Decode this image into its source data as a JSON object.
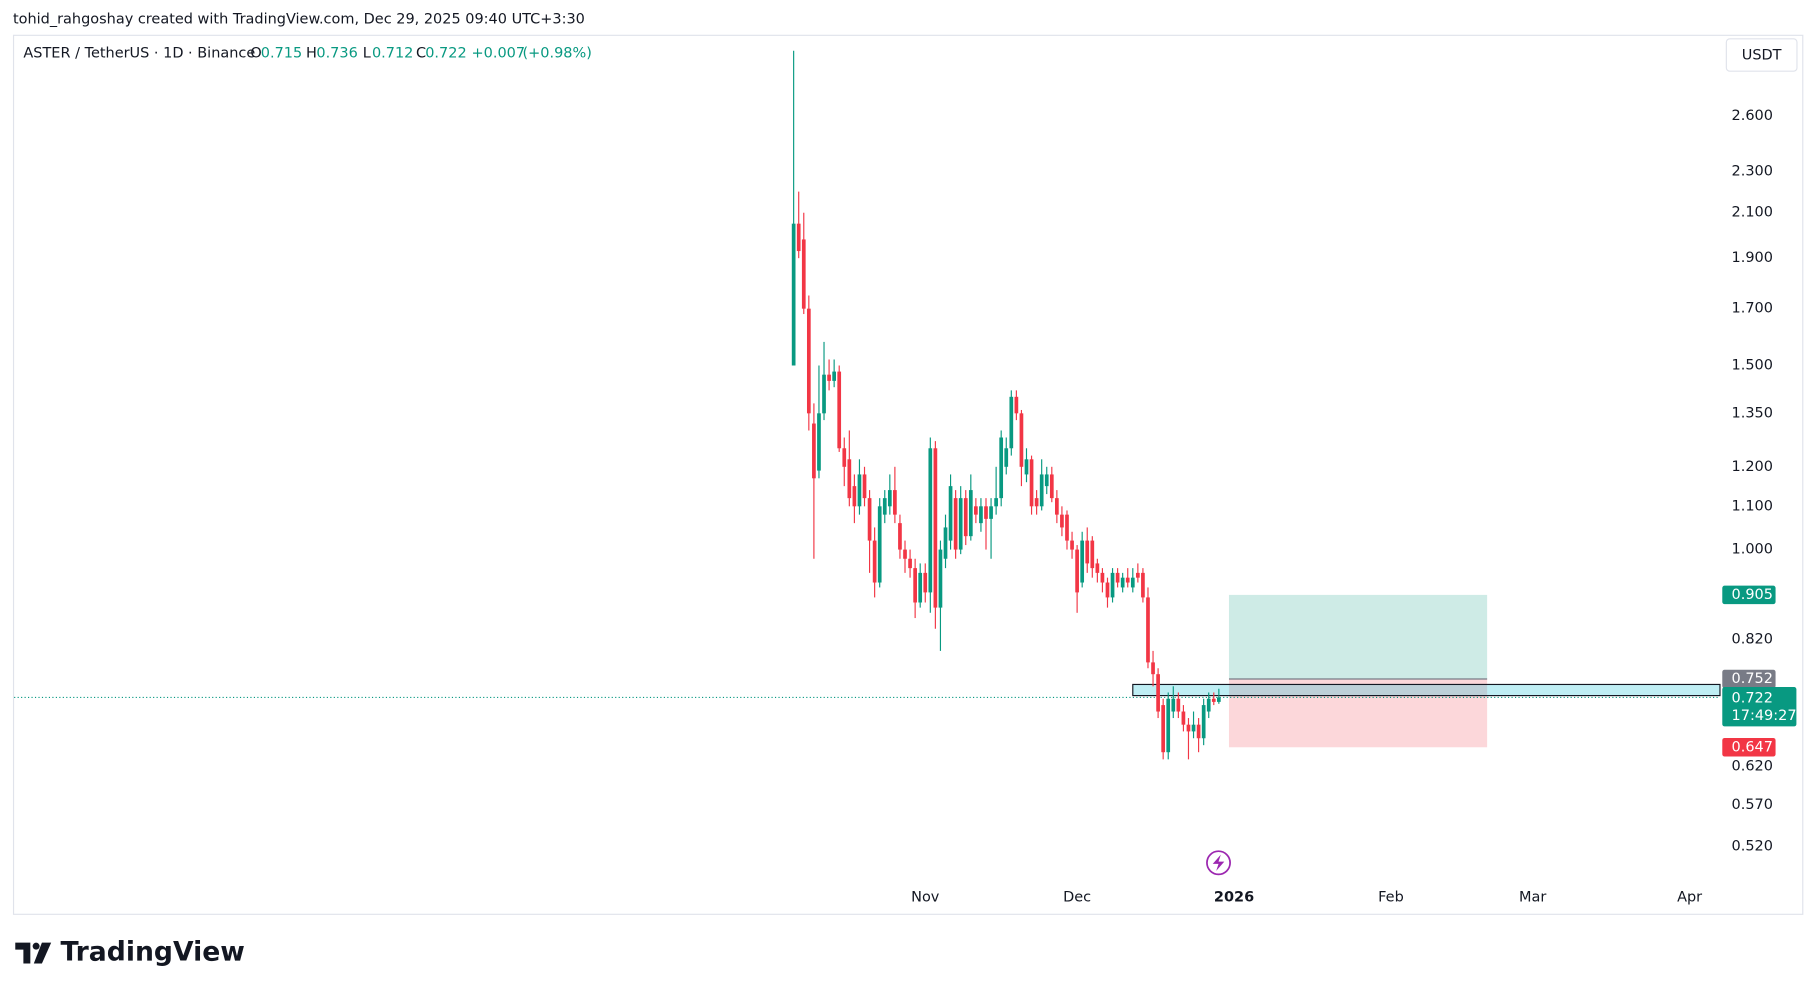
{
  "chart_data": {
    "type": "candlestick",
    "attribution": "tohid_rahgoshay created with TradingView.com, Dec 29, 2025 09:40 UTC+3:30",
    "title": "ASTER / TetherUS · 1D · Binance",
    "ohlc_labels": [
      "O",
      "H",
      "L",
      "C"
    ],
    "change": "+0.007",
    "change_pct": "(+0.98%)",
    "currency": "USDT",
    "countdown": "17:49:27",
    "watermark": "TradingView",
    "log_scale": true,
    "up_color": "#089981",
    "down_color": "#f23645",
    "x": [
      0,
      1,
      2,
      3,
      4,
      5,
      6,
      7,
      8,
      9,
      10,
      11,
      12,
      13,
      14,
      15,
      16,
      17,
      18,
      19,
      20,
      21,
      22,
      23,
      24,
      25,
      26,
      27,
      28,
      29,
      30,
      31,
      32,
      33,
      34,
      35,
      36,
      37,
      38,
      39,
      40,
      41,
      42,
      43,
      44,
      45,
      46,
      47,
      48,
      49,
      50,
      51,
      52,
      53,
      54,
      55,
      56,
      57,
      58,
      59,
      60,
      61,
      62,
      63,
      64,
      65,
      66,
      67,
      68,
      69,
      70,
      71,
      72,
      73,
      74,
      75,
      76,
      77,
      78,
      79,
      80,
      81,
      82,
      83,
      84
    ],
    "open": [
      1.5,
      2.05,
      1.98,
      1.7,
      1.32,
      1.19,
      1.35,
      1.47,
      1.45,
      1.48,
      1.25,
      1.22,
      1.15,
      1.1,
      1.18,
      1.12,
      1.02,
      0.93,
      1.08,
      1.1,
      1.14,
      1.06,
      1.0,
      0.98,
      0.96,
      0.89,
      0.95,
      0.91,
      1.25,
      0.88,
      0.98,
      1.02,
      1.12,
      1.0,
      1.12,
      1.03,
      1.1,
      1.06,
      1.1,
      1.07,
      1.1,
      1.12,
      1.2,
      1.25,
      1.4,
      1.35,
      1.18,
      1.22,
      1.12,
      1.1,
      1.15,
      1.18,
      1.12,
      1.08,
      1.08,
      1.02,
      1.0,
      0.93,
      1.02,
      1.02,
      0.97,
      0.95,
      0.93,
      0.9,
      0.95,
      0.92,
      0.94,
      0.92,
      0.95,
      0.95,
      0.9,
      0.78,
      0.76,
      0.71,
      0.64,
      0.7,
      0.72,
      0.7,
      0.68,
      0.67,
      0.68,
      0.66,
      0.7,
      0.72,
      0.715
    ],
    "high": [
      3.0,
      2.2,
      2.1,
      1.75,
      1.38,
      1.5,
      1.58,
      1.52,
      1.52,
      1.5,
      1.28,
      1.3,
      1.18,
      1.22,
      1.2,
      1.14,
      1.05,
      1.12,
      1.14,
      1.18,
      1.2,
      1.08,
      1.02,
      1.0,
      0.98,
      0.97,
      0.97,
      1.28,
      1.27,
      1.02,
      1.08,
      1.18,
      1.14,
      1.15,
      1.14,
      1.18,
      1.12,
      1.12,
      1.12,
      1.12,
      1.2,
      1.3,
      1.28,
      1.42,
      1.42,
      1.36,
      1.25,
      1.23,
      1.14,
      1.22,
      1.2,
      1.2,
      1.14,
      1.1,
      1.09,
      1.04,
      1.01,
      1.04,
      1.05,
      1.03,
      0.98,
      0.96,
      0.94,
      0.96,
      0.96,
      0.95,
      0.96,
      0.96,
      0.97,
      0.96,
      0.92,
      0.8,
      0.77,
      0.72,
      0.73,
      0.74,
      0.73,
      0.71,
      0.69,
      0.7,
      0.69,
      0.72,
      0.73,
      0.73,
      0.736
    ],
    "low": [
      1.5,
      1.9,
      1.68,
      1.3,
      0.98,
      1.17,
      1.33,
      1.42,
      1.43,
      1.24,
      1.15,
      1.1,
      1.06,
      1.08,
      1.1,
      0.95,
      0.9,
      0.92,
      1.06,
      1.08,
      1.06,
      0.98,
      0.95,
      0.94,
      0.86,
      0.88,
      0.89,
      0.87,
      0.84,
      0.8,
      0.96,
      1.0,
      0.98,
      0.99,
      1.01,
      1.02,
      1.06,
      1.04,
      1.0,
      0.98,
      1.08,
      1.1,
      1.18,
      1.23,
      1.33,
      1.15,
      1.16,
      1.08,
      1.08,
      1.09,
      1.13,
      1.11,
      1.06,
      1.03,
      1.0,
      0.98,
      0.87,
      0.92,
      0.95,
      0.94,
      0.93,
      0.91,
      0.88,
      0.89,
      0.92,
      0.91,
      0.92,
      0.91,
      0.93,
      0.89,
      0.77,
      0.74,
      0.69,
      0.63,
      0.63,
      0.69,
      0.69,
      0.67,
      0.63,
      0.66,
      0.64,
      0.65,
      0.69,
      0.71,
      0.712
    ],
    "close": [
      2.05,
      1.93,
      1.7,
      1.35,
      1.17,
      1.35,
      1.47,
      1.45,
      1.48,
      1.25,
      1.2,
      1.12,
      1.1,
      1.18,
      1.12,
      1.02,
      0.93,
      1.1,
      1.12,
      1.14,
      1.08,
      1.0,
      0.98,
      0.96,
      0.89,
      0.95,
      0.91,
      1.25,
      0.88,
      1.0,
      1.05,
      1.15,
      1.0,
      1.12,
      1.03,
      1.14,
      1.08,
      1.1,
      1.07,
      1.1,
      1.12,
      1.28,
      1.25,
      1.4,
      1.35,
      1.2,
      1.22,
      1.1,
      1.1,
      1.18,
      1.18,
      1.12,
      1.08,
      1.05,
      1.02,
      1.0,
      0.91,
      1.02,
      0.97,
      0.96,
      0.95,
      0.93,
      0.9,
      0.95,
      0.93,
      0.94,
      0.93,
      0.94,
      0.94,
      0.9,
      0.78,
      0.76,
      0.7,
      0.64,
      0.72,
      0.72,
      0.7,
      0.68,
      0.67,
      0.68,
      0.66,
      0.71,
      0.72,
      0.715,
      0.722
    ],
    "xlim": [
      -154,
      183
    ],
    "xticks": [
      {
        "value": 26,
        "label": "Nov"
      },
      {
        "value": 56,
        "label": "Dec"
      },
      {
        "value": 87,
        "label": "2026"
      },
      {
        "value": 118,
        "label": "Feb"
      },
      {
        "value": 146,
        "label": "Mar"
      },
      {
        "value": 177,
        "label": "Apr"
      }
    ],
    "ylim": [
      0.46,
      3.1
    ],
    "yticks": [
      {
        "value": 2.6,
        "label": "2.600"
      },
      {
        "value": 2.3,
        "label": "2.300"
      },
      {
        "value": 2.1,
        "label": "2.100"
      },
      {
        "value": 1.9,
        "label": "1.900"
      },
      {
        "value": 1.7,
        "label": "1.700"
      },
      {
        "value": 1.5,
        "label": "1.500"
      },
      {
        "value": 1.35,
        "label": "1.350"
      },
      {
        "value": 1.2,
        "label": "1.200"
      },
      {
        "value": 1.1,
        "label": "1.100"
      },
      {
        "value": 1.0,
        "label": "1.000"
      },
      {
        "value": 0.82,
        "label": "0.820"
      },
      {
        "value": 0.62,
        "label": "0.620"
      },
      {
        "value": 0.57,
        "label": "0.570"
      },
      {
        "value": 0.52,
        "label": "0.520"
      }
    ],
    "position": {
      "entry": 0.752,
      "target": 0.905,
      "stop": 0.647,
      "x": [
        86,
        137
      ]
    },
    "zone": {
      "ylim": [
        0.725,
        0.743
      ],
      "x": [
        67,
        183
      ]
    }
  }
}
